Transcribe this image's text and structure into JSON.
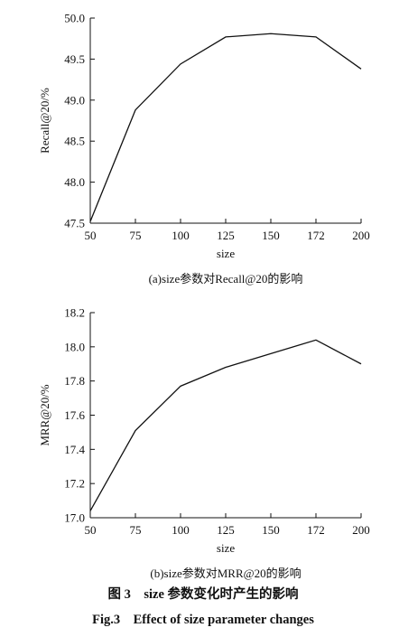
{
  "chart_data": [
    {
      "type": "line",
      "x": [
        50,
        75,
        100,
        125,
        150,
        172,
        200
      ],
      "x_tick_labels": [
        "50",
        "75",
        "100",
        "125",
        "150",
        "172",
        "200"
      ],
      "series": [
        {
          "values": [
            47.52,
            48.88,
            49.44,
            49.77,
            49.81,
            49.77,
            49.38
          ]
        }
      ],
      "xlabel": "size",
      "ylabel": "Recall@20/%",
      "ylim": [
        47.5,
        50.0
      ],
      "y_ticks": [
        47.5,
        48.0,
        48.5,
        49.0,
        49.5,
        50.0
      ],
      "y_tick_labels": [
        "47.5",
        "48.0",
        "48.5",
        "49.0",
        "49.5",
        "50.0"
      ],
      "caption": "(a)size参数对Recall@20的影响",
      "grid": false,
      "line_color": "#111111"
    },
    {
      "type": "line",
      "x": [
        50,
        75,
        100,
        125,
        150,
        172,
        200
      ],
      "x_tick_labels": [
        "50",
        "75",
        "100",
        "125",
        "150",
        "172",
        "200"
      ],
      "series": [
        {
          "values": [
            17.04,
            17.51,
            17.77,
            17.88,
            17.96,
            18.04,
            17.9
          ]
        }
      ],
      "xlabel": "size",
      "ylabel": "MRR@20/%",
      "ylim": [
        17.0,
        18.2
      ],
      "y_ticks": [
        17.0,
        17.2,
        17.4,
        17.6,
        17.8,
        18.0,
        18.2
      ],
      "y_tick_labels": [
        "17.0",
        "17.2",
        "17.4",
        "17.6",
        "17.8",
        "18.0",
        "18.2"
      ],
      "caption": "(b)size参数对MRR@20的影响",
      "grid": false,
      "line_color": "#111111"
    }
  ],
  "figure": {
    "caption_cn": "图 3　size 参数变化时产生的影响",
    "caption_en": "Fig.3　Effect of size parameter changes"
  }
}
